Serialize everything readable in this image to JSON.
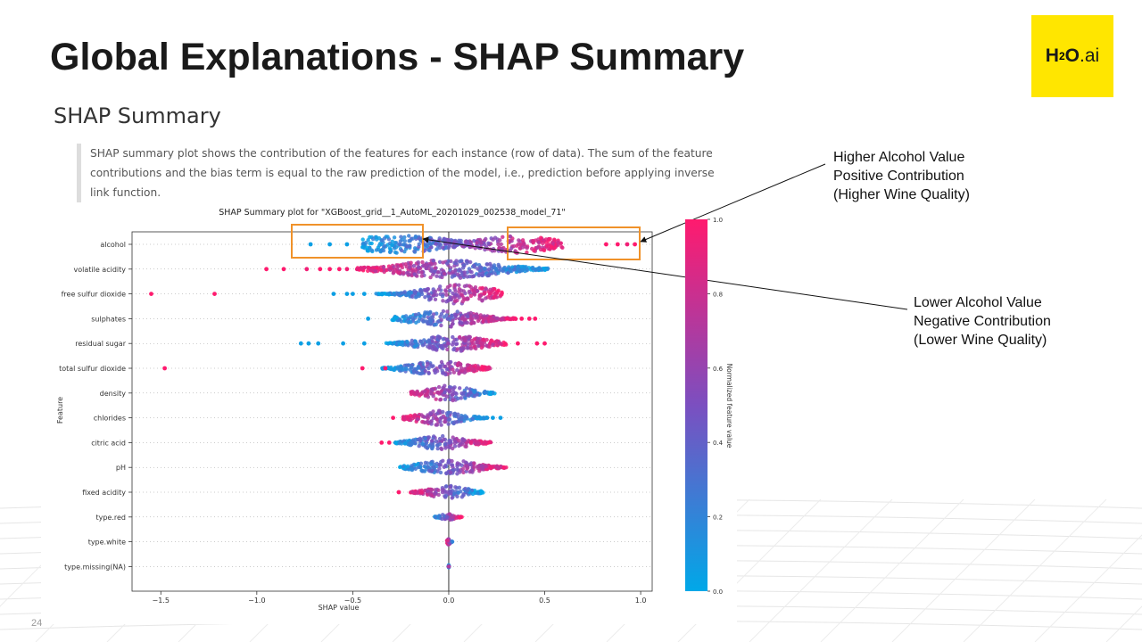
{
  "slide": {
    "title": "Global Explanations - SHAP Summary",
    "page_number": "24",
    "logo": {
      "h": "H",
      "sub": "2",
      "o": "O",
      "ai": ".ai",
      "bg_color": "#ffe600"
    }
  },
  "section": {
    "heading": "SHAP Summary",
    "description": "SHAP summary plot shows the contribution of the features for each instance (row of data). The sum of the feature contributions and the bias term is equal to the raw prediction of the model, i.e., prediction before applying inverse link function."
  },
  "annotations": {
    "higher": [
      "Higher Alcohol Value",
      "Positive Contribution",
      "(Higher Wine Quality)"
    ],
    "lower": [
      "Lower Alcohol Value",
      "Negative Contribution",
      "(Lower Wine Quality)"
    ],
    "box_color": "#f0922a"
  },
  "chart_data": {
    "type": "scatter",
    "subtype": "shap-beeswarm",
    "title": "SHAP Summary plot for \"XGBoost_grid__1_AutoML_20201029_002538_model_71\"",
    "xlabel": "SHAP value",
    "ylabel": "Feature",
    "xlim": [
      -1.65,
      1.06
    ],
    "x_ticks": [
      -1.5,
      -1.0,
      -0.5,
      0.0,
      0.5,
      1.0
    ],
    "x_tick_labels": [
      "−1.5",
      "−1.0",
      "−0.5",
      "0.0",
      "0.5",
      "1.0"
    ],
    "features": [
      "alcohol",
      "volatile acidity",
      "free sulfur dioxide",
      "sulphates",
      "residual sugar",
      "total sulfur dioxide",
      "density",
      "chlorides",
      "citric acid",
      "pH",
      "fixed acidity",
      "type.red",
      "type.white",
      "type.missing(NA)"
    ],
    "distributions": [
      {
        "feature": "alcohol",
        "min": -0.72,
        "max": 0.97,
        "core": [
          -0.45,
          0.6
        ],
        "peak": -0.26,
        "peak2": 0.35,
        "width": 0.9,
        "low_side": "negative",
        "outliers": [
          {
            "x": -0.72,
            "v": 0.05
          },
          {
            "x": -0.62,
            "v": 0.05
          },
          {
            "x": -0.53,
            "v": 0.05
          },
          {
            "x": 0.82,
            "v": 1.0
          },
          {
            "x": 0.88,
            "v": 1.0
          },
          {
            "x": 0.93,
            "v": 0.95
          },
          {
            "x": 0.97,
            "v": 1.0
          }
        ]
      },
      {
        "feature": "volatile acidity",
        "min": -0.95,
        "max": 0.55,
        "core": [
          -0.48,
          0.52
        ],
        "peak": 0.0,
        "width": 0.95,
        "low_side": "positive",
        "outliers": [
          {
            "x": -0.95,
            "v": 1.0
          },
          {
            "x": -0.86,
            "v": 1.0
          },
          {
            "x": -0.74,
            "v": 0.95
          },
          {
            "x": -0.67,
            "v": 1.0
          },
          {
            "x": -0.62,
            "v": 1.0
          },
          {
            "x": -0.57,
            "v": 1.0
          },
          {
            "x": -0.53,
            "v": 0.95
          }
        ]
      },
      {
        "feature": "free sulfur dioxide",
        "min": -1.55,
        "max": 0.3,
        "core": [
          -0.38,
          0.28
        ],
        "peak": 0.05,
        "width": 1.0,
        "low_side": "negative",
        "outliers": [
          {
            "x": -1.55,
            "v": 1.0
          },
          {
            "x": -1.22,
            "v": 1.0
          },
          {
            "x": -0.6,
            "v": 0.05
          },
          {
            "x": -0.53,
            "v": 0.05
          },
          {
            "x": -0.5,
            "v": 0.05
          },
          {
            "x": -0.44,
            "v": 0.05
          }
        ]
      },
      {
        "feature": "sulphates",
        "min": -0.42,
        "max": 0.45,
        "core": [
          -0.3,
          0.35
        ],
        "peak": -0.02,
        "width": 0.85,
        "low_side": "negative",
        "outliers": [
          {
            "x": -0.42,
            "v": 0.05
          },
          {
            "x": 0.38,
            "v": 1.0
          },
          {
            "x": 0.42,
            "v": 1.0
          },
          {
            "x": 0.45,
            "v": 1.0
          }
        ]
      },
      {
        "feature": "residual sugar",
        "min": -0.77,
        "max": 0.52,
        "core": [
          -0.33,
          0.3
        ],
        "peak": 0.02,
        "width": 0.8,
        "low_side": "negative",
        "outliers": [
          {
            "x": -0.77,
            "v": 0.05
          },
          {
            "x": -0.73,
            "v": 0.05
          },
          {
            "x": -0.68,
            "v": 0.05
          },
          {
            "x": -0.55,
            "v": 0.05
          },
          {
            "x": -0.44,
            "v": 0.05
          },
          {
            "x": 0.36,
            "v": 1.0
          },
          {
            "x": 0.46,
            "v": 1.0
          },
          {
            "x": 0.5,
            "v": 1.0
          }
        ]
      },
      {
        "feature": "total sulfur dioxide",
        "min": -1.48,
        "max": 0.23,
        "core": [
          -0.35,
          0.22
        ],
        "peak": -0.05,
        "width": 0.75,
        "low_side": "negative",
        "outliers": [
          {
            "x": -1.48,
            "v": 1.0
          },
          {
            "x": -0.45,
            "v": 1.0
          },
          {
            "x": -0.33,
            "v": 1.0
          }
        ]
      },
      {
        "feature": "density",
        "min": -0.2,
        "max": 0.24,
        "core": [
          -0.2,
          0.24
        ],
        "peak": 0.0,
        "width": 0.8,
        "low_side": "positive",
        "outliers": []
      },
      {
        "feature": "chlorides",
        "min": -0.29,
        "max": 0.27,
        "core": [
          -0.24,
          0.2
        ],
        "peak": -0.05,
        "width": 0.75,
        "low_side": "positive",
        "outliers": [
          {
            "x": -0.29,
            "v": 1.0
          },
          {
            "x": 0.2,
            "v": 0.1
          },
          {
            "x": 0.23,
            "v": 0.05
          },
          {
            "x": 0.27,
            "v": 0.05
          }
        ]
      },
      {
        "feature": "citric acid",
        "min": -0.35,
        "max": 0.24,
        "core": [
          -0.28,
          0.22
        ],
        "peak": -0.03,
        "width": 0.7,
        "low_side": "negative",
        "outliers": [
          {
            "x": -0.35,
            "v": 1.0
          },
          {
            "x": -0.31,
            "v": 1.0
          }
        ]
      },
      {
        "feature": "pH",
        "min": -0.28,
        "max": 0.31,
        "core": [
          -0.26,
          0.3
        ],
        "peak": 0.0,
        "width": 0.75,
        "low_side": "negative",
        "outliers": []
      },
      {
        "feature": "fixed acidity",
        "min": -0.26,
        "max": 0.18,
        "core": [
          -0.2,
          0.18
        ],
        "peak": 0.0,
        "width": 0.65,
        "low_side": "positive",
        "outliers": [
          {
            "x": -0.26,
            "v": 1.0
          }
        ]
      },
      {
        "feature": "type.red",
        "min": -0.08,
        "max": 0.07,
        "core": [
          -0.08,
          0.07
        ],
        "peak": 0.0,
        "width": 0.35,
        "low_side": "negative",
        "outliers": []
      },
      {
        "feature": "type.white",
        "min": -0.01,
        "max": 0.02,
        "core": [
          -0.01,
          0.02
        ],
        "peak": 0.0,
        "width": 0.3,
        "low_side": "positive",
        "outliers": []
      },
      {
        "feature": "type.missing(NA)",
        "min": 0.0,
        "max": 0.0,
        "core": [
          0.0,
          0.0
        ],
        "peak": 0.0,
        "width": 0.2,
        "low_side": "negative",
        "outliers": []
      }
    ],
    "colorbar": {
      "label": "Normalized feature value",
      "ticks": [
        0.0,
        0.2,
        0.4,
        0.6,
        0.8,
        1.0
      ],
      "tick_labels": [
        "0.0",
        "0.2",
        "0.4",
        "0.6",
        "0.8",
        "1.0"
      ],
      "low_color": "#00a8e8",
      "mid_color": "#7b4fc0",
      "high_color": "#ff1a6e"
    },
    "grid": false,
    "zero_line": true
  }
}
